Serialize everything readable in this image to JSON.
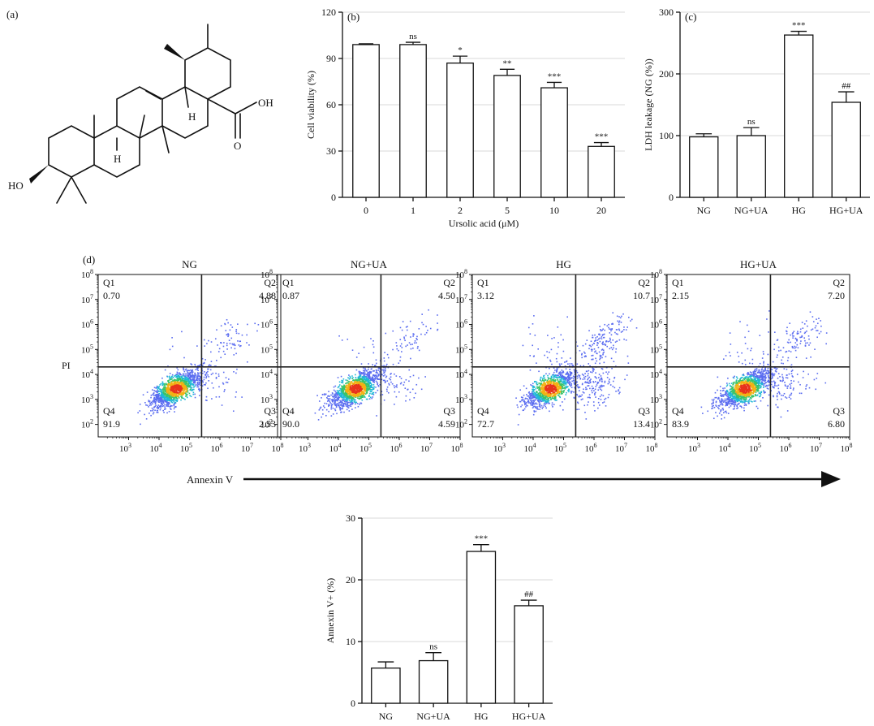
{
  "panels": {
    "a": {
      "letter": "(a)",
      "atom_labels": [
        "HO",
        "OH",
        "O",
        "H",
        "H"
      ]
    },
    "d": {
      "letter": "(d)",
      "y_channel": "PI",
      "x_channel": "Annexin V",
      "tick_base": "10",
      "x_tick_exponents": [
        "3",
        "4",
        "5",
        "6",
        "7",
        "8"
      ],
      "y_tick_exponents": [
        "2",
        "3",
        "4",
        "5",
        "6",
        "7",
        "8"
      ]
    }
  },
  "chart_data": [
    {
      "id": "b",
      "letter": "(b)",
      "type": "bar",
      "xlabel": "Ursolic acid (μM)",
      "ylabel": "Cell viability (%)",
      "ylim": [
        0,
        120
      ],
      "yticks": [
        0,
        30,
        60,
        90,
        120
      ],
      "grid": true,
      "categories": [
        "0",
        "1",
        "2",
        "5",
        "10",
        "20"
      ],
      "values": [
        99,
        99,
        87,
        79,
        71,
        33
      ],
      "errors": [
        0.5,
        1.5,
        4.5,
        4,
        3.5,
        2.5
      ],
      "annotations": [
        "",
        "ns",
        "*",
        "**",
        "***",
        "***"
      ]
    },
    {
      "id": "c",
      "letter": "(c)",
      "type": "bar",
      "xlabel": "",
      "ylabel": "LDH leakage (NG (%))",
      "ylim": [
        0,
        300
      ],
      "yticks": [
        0,
        100,
        200,
        300
      ],
      "grid": true,
      "categories": [
        "NG",
        "NG+UA",
        "HG",
        "HG+UA"
      ],
      "values": [
        98,
        100,
        263,
        154
      ],
      "errors": [
        5,
        13,
        6,
        17
      ],
      "annotations": [
        "",
        "ns",
        "***",
        "##"
      ]
    },
    {
      "id": "d_flow",
      "type": "scatter",
      "x_channel": "Annexin V",
      "y_channel": "PI",
      "x_scale": "log",
      "y_scale": "log",
      "xlim": [
        100,
        100000000
      ],
      "ylim": [
        31.6,
        100000000
      ],
      "gate": {
        "x": 250000,
        "y": 20000
      },
      "panels": [
        {
          "title": "NG",
          "Q1": "0.70",
          "Q2": "4.88",
          "Q3": "2.53",
          "Q4": "91.9"
        },
        {
          "title": "NG+UA",
          "Q1": "0.87",
          "Q2": "4.50",
          "Q3": "4.59",
          "Q4": "90.0"
        },
        {
          "title": "HG",
          "Q1": "3.12",
          "Q2": "10.7",
          "Q3": "13.4",
          "Q4": "72.7"
        },
        {
          "title": "HG+UA",
          "Q1": "2.15",
          "Q2": "7.20",
          "Q3": "6.80",
          "Q4": "83.9"
        }
      ]
    },
    {
      "id": "e",
      "type": "bar",
      "xlabel": "",
      "ylabel": "Annexin V+ (%)",
      "ylim": [
        0,
        30
      ],
      "yticks": [
        0,
        10,
        20,
        30
      ],
      "grid": true,
      "categories": [
        "NG",
        "NG+UA",
        "HG",
        "HG+UA"
      ],
      "values": [
        5.7,
        6.9,
        24.6,
        15.8
      ],
      "errors": [
        1.0,
        1.3,
        1.1,
        0.9
      ],
      "annotations": [
        "",
        "ns",
        "***",
        "##"
      ]
    }
  ]
}
